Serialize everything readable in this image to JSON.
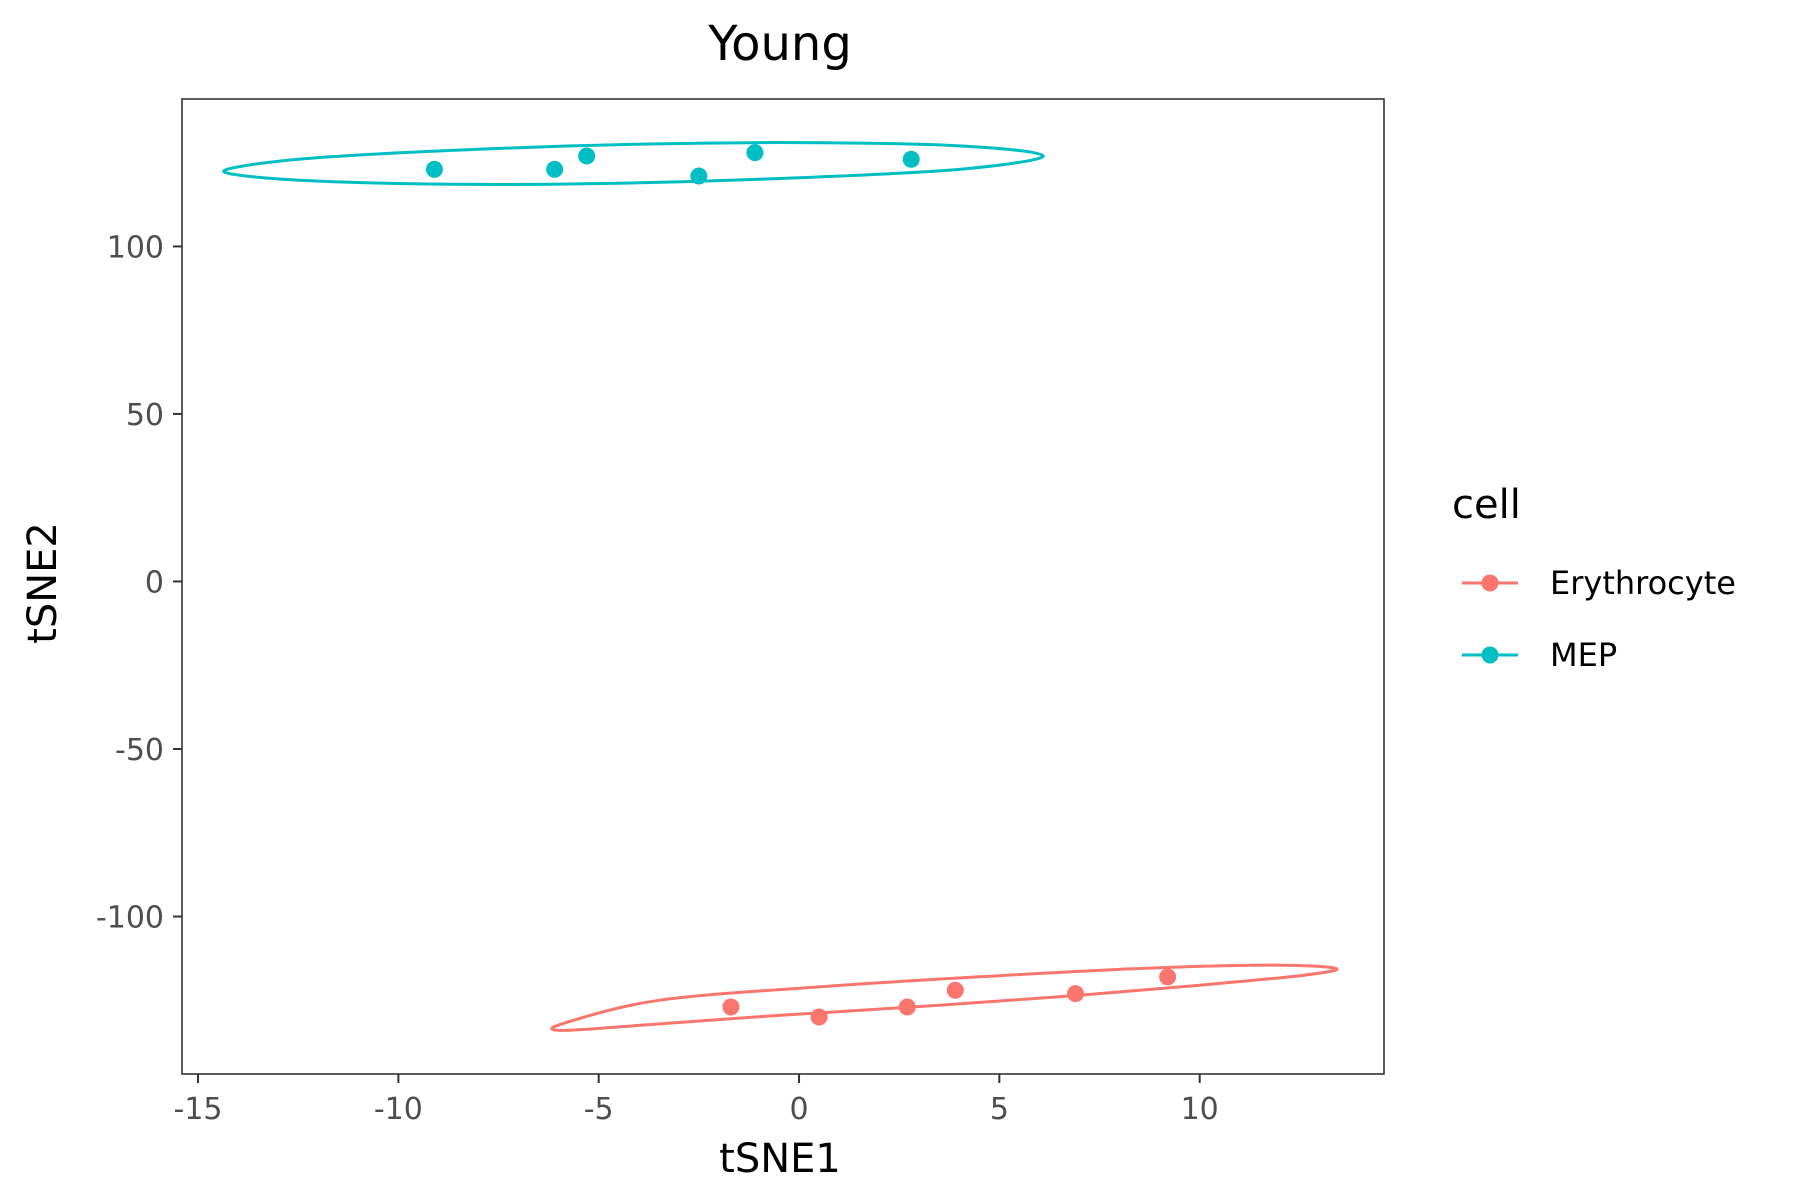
{
  "chart_data": {
    "type": "scatter",
    "title": "Young",
    "xlabel": "tSNE1",
    "ylabel": "tSNE2",
    "xlim": [
      -15.4,
      14.6
    ],
    "ylim": [
      -147,
      144
    ],
    "x_ticks": [
      -15,
      -10,
      -5,
      0,
      5,
      10
    ],
    "x_tick_labels": [
      "-15",
      "-10",
      "-5",
      "0",
      "5",
      "10"
    ],
    "y_ticks": [
      100,
      50,
      0,
      -50,
      -100
    ],
    "y_tick_labels": [
      "100",
      "50",
      "0",
      "-50",
      "-100"
    ],
    "grid": false,
    "legend": {
      "title": "cell",
      "position": "right"
    },
    "series": [
      {
        "name": "Erythrocyte",
        "color": "#F8766D",
        "points": [
          {
            "x": -1.7,
            "y": -127
          },
          {
            "x": 0.5,
            "y": -130
          },
          {
            "x": 2.7,
            "y": -127
          },
          {
            "x": 3.9,
            "y": -122
          },
          {
            "x": 6.9,
            "y": -123
          },
          {
            "x": 9.2,
            "y": -118
          }
        ],
        "ellipse": [
          {
            "x": -5.9,
            "y": -134
          },
          {
            "x": -4.0,
            "y": -132.5
          },
          {
            "x": -0.5,
            "y": -129.5
          },
          {
            "x": 3.5,
            "y": -126.5
          },
          {
            "x": 7.0,
            "y": -123.5
          },
          {
            "x": 10.0,
            "y": -120.5
          },
          {
            "x": 12.6,
            "y": -117.5
          },
          {
            "x": 13.4,
            "y": -115.5
          },
          {
            "x": 11.8,
            "y": -114.5
          },
          {
            "x": 8.5,
            "y": -115.5
          },
          {
            "x": 4.5,
            "y": -118
          },
          {
            "x": 0.5,
            "y": -121
          },
          {
            "x": -3.5,
            "y": -125
          },
          {
            "x": -5.9,
            "y": -132
          }
        ]
      },
      {
        "name": "MEP",
        "color": "#00BFC4",
        "points": [
          {
            "x": -9.1,
            "y": 123
          },
          {
            "x": -6.1,
            "y": 123
          },
          {
            "x": -5.3,
            "y": 127
          },
          {
            "x": -2.5,
            "y": 121
          },
          {
            "x": -1.1,
            "y": 128
          },
          {
            "x": 2.8,
            "y": 126
          }
        ],
        "ellipse": [
          {
            "x": -14.1,
            "y": 121.5
          },
          {
            "x": -12.0,
            "y": 119.5
          },
          {
            "x": -8.0,
            "y": 118.5
          },
          {
            "x": -4.0,
            "y": 119
          },
          {
            "x": 0.0,
            "y": 120.5
          },
          {
            "x": 4.0,
            "y": 123
          },
          {
            "x": 6.1,
            "y": 127
          },
          {
            "x": 4.0,
            "y": 130
          },
          {
            "x": 0.0,
            "y": 131
          },
          {
            "x": -4.0,
            "y": 130.5
          },
          {
            "x": -8.0,
            "y": 129
          },
          {
            "x": -12.0,
            "y": 126.5
          },
          {
            "x": -14.1,
            "y": 123.5
          }
        ]
      }
    ]
  }
}
